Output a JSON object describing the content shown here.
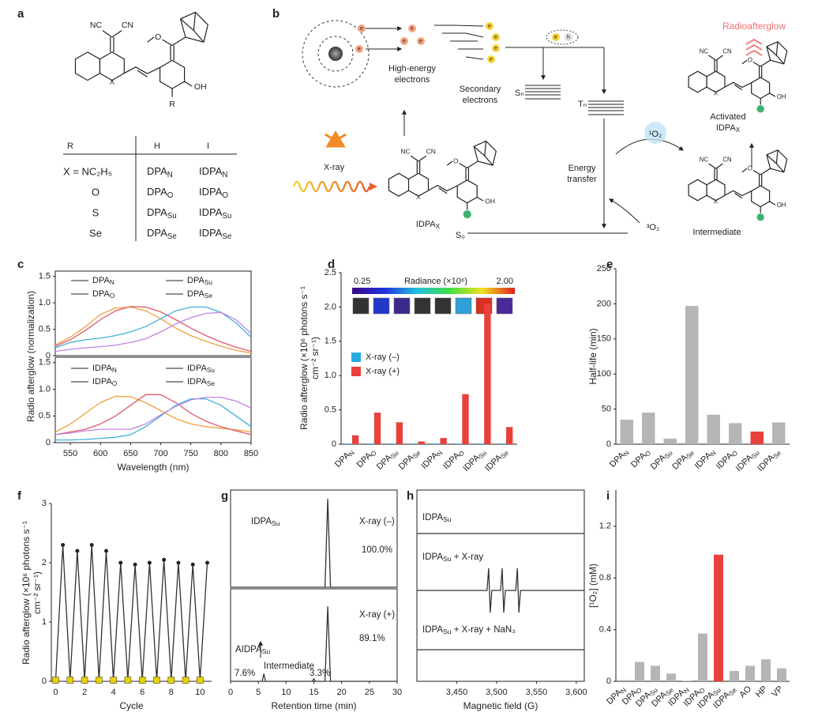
{
  "panel_labels": [
    "a",
    "b",
    "c",
    "d",
    "e",
    "f",
    "g",
    "h",
    "i"
  ],
  "structure": {
    "nc": "NC",
    "cn": "CN",
    "x": "X",
    "r": "R",
    "oh": "OH",
    "o": "O"
  },
  "table": {
    "header": [
      "R",
      "H",
      "I"
    ],
    "rows": [
      [
        "X = NC₂H₅",
        "DPAN",
        "IDPAN"
      ],
      [
        "O",
        "DPAO",
        "IDPAO"
      ],
      [
        "S",
        "DPASu",
        "IDPASu"
      ],
      [
        "Se",
        "DPASe",
        "IDPASe"
      ]
    ]
  },
  "mechanism": {
    "electron": "e",
    "hole": "h",
    "high_energy": [
      "High-energy",
      "electrons"
    ],
    "secondary": [
      "Secondary",
      "electrons"
    ],
    "sn": "Sₙ",
    "tn": "Tₙ",
    "s0": "S₀",
    "xray": "X-ray",
    "idpa": "IDPAX",
    "energy_transfer": [
      "Energy",
      "transfer"
    ],
    "singlet": "¹O₂",
    "triplet": "³O₂",
    "intermediate": "Intermediate",
    "activated": [
      "Activated",
      "IDPAX"
    ],
    "radioafterglow": "Radioafterglow"
  },
  "chart_data": [
    {
      "type": "line",
      "ylabel": "Radio afterglow (normalization)",
      "x": [
        525,
        550,
        575,
        600,
        625,
        650,
        675,
        700,
        725,
        750,
        775,
        800,
        825,
        850
      ],
      "xlim": [
        525,
        850
      ],
      "ylim": [
        0,
        1.6
      ],
      "yticks": [
        0,
        0.5,
        {
          "value": 1,
          "label": "1.0"
        },
        1.5
      ],
      "series": [
        {
          "name": "DPAN",
          "color": "#f0a040",
          "values": [
            0.2,
            0.35,
            0.55,
            0.78,
            0.9,
            0.92,
            0.85,
            0.7,
            0.52,
            0.38,
            0.27,
            0.18,
            0.1,
            0.05
          ]
        },
        {
          "name": "DPAO",
          "color": "#e05a6a",
          "values": [
            0.18,
            0.3,
            0.48,
            0.68,
            0.85,
            0.93,
            0.92,
            0.83,
            0.68,
            0.52,
            0.38,
            0.26,
            0.16,
            0.08
          ]
        },
        {
          "name": "DPASu",
          "color": "#3fb0e0",
          "values": [
            0.15,
            0.25,
            0.3,
            0.33,
            0.38,
            0.45,
            0.55,
            0.7,
            0.85,
            0.92,
            0.92,
            0.82,
            0.62,
            0.35
          ]
        },
        {
          "name": "DPASe",
          "color": "#c084e0",
          "values": [
            0.08,
            0.12,
            0.15,
            0.17,
            0.2,
            0.25,
            0.32,
            0.45,
            0.6,
            0.72,
            0.8,
            0.82,
            0.68,
            0.42
          ]
        }
      ]
    },
    {
      "type": "line",
      "xlabel": "Wavelength (nm)",
      "x": [
        525,
        550,
        575,
        600,
        625,
        650,
        675,
        700,
        725,
        750,
        775,
        800,
        825,
        850
      ],
      "xlim": [
        525,
        850
      ],
      "xticks": [
        550,
        600,
        650,
        700,
        750,
        800,
        850
      ],
      "ylim": [
        0,
        1.6
      ],
      "yticks": [
        0,
        0.5,
        {
          "value": 1,
          "label": "1.0"
        },
        1.5
      ],
      "series": [
        {
          "name": "IDPAN",
          "color": "#f0a040",
          "values": [
            0.2,
            0.35,
            0.55,
            0.75,
            0.87,
            0.86,
            0.75,
            0.6,
            0.45,
            0.35,
            0.3,
            0.27,
            0.24,
            0.2
          ]
        },
        {
          "name": "IDPAO",
          "color": "#e05a6a",
          "values": [
            0.15,
            0.2,
            0.25,
            0.35,
            0.5,
            0.7,
            0.9,
            0.9,
            0.75,
            0.55,
            0.4,
            0.3,
            0.22,
            0.15
          ]
        },
        {
          "name": "IDPASu",
          "color": "#3fb0e0",
          "values": [
            0.05,
            0.05,
            0.06,
            0.08,
            0.1,
            0.15,
            0.3,
            0.5,
            0.7,
            0.82,
            0.82,
            0.7,
            0.5,
            0.3
          ]
        },
        {
          "name": "IDPASe",
          "color": "#c084e0",
          "values": [
            0.15,
            0.18,
            0.22,
            0.25,
            0.25,
            0.25,
            0.35,
            0.52,
            0.68,
            0.8,
            0.85,
            0.85,
            0.78,
            0.65
          ]
        }
      ]
    },
    {
      "type": "bar",
      "ylabel": [
        "Radio afterglow (×10⁶ photons s⁻¹",
        "cm⁻² sr⁻¹)"
      ],
      "categories": [
        "DPAN",
        "DPAO",
        "DPASu",
        "DPASe",
        "IDPAN",
        "IDPAO",
        "IDPASu",
        "IDPASe"
      ],
      "series": [
        {
          "name": "X-ray (–)",
          "color": "#29abe2",
          "values": [
            0.01,
            0.01,
            0.01,
            0.01,
            0.01,
            0.01,
            0.01,
            0.01
          ]
        },
        {
          "name": "X-ray (+)",
          "color": "#e8413c",
          "values": [
            0.13,
            0.46,
            0.32,
            0.04,
            0.09,
            0.73,
            2.05,
            0.25
          ]
        }
      ],
      "ylim": [
        0,
        2.5
      ],
      "yticks": [
        0,
        0.5,
        {
          "value": 1,
          "label": "1.0"
        },
        1.5,
        {
          "value": 2,
          "label": "2.0"
        },
        2.5
      ],
      "colorbar": {
        "title": "Radiance (×10⁶)",
        "min_label": "0.25",
        "max_label": "2.00"
      }
    },
    {
      "type": "bar",
      "ylabel": "Half-life (min)",
      "categories": [
        "DPAN",
        "DPAO",
        "DPASu",
        "DPASe",
        "IDPAN",
        "IDPAO",
        "IDPASu",
        "IDPASe"
      ],
      "values": [
        35,
        45,
        8,
        197,
        42,
        30,
        18,
        31
      ],
      "colors": [
        "#b5b5b5",
        "#b5b5b5",
        "#b5b5b5",
        "#b5b5b5",
        "#b5b5b5",
        "#b5b5b5",
        "#e8413c",
        "#b5b5b5"
      ],
      "ylim": [
        0,
        250
      ],
      "yticks": [
        0,
        50,
        100,
        150,
        200,
        250
      ]
    },
    {
      "type": "line",
      "xlabel": "Cycle",
      "ylabel": [
        "Radio afterglow (×10⁶ photons s⁻¹",
        "cm⁻² sr⁻¹)"
      ],
      "x": [
        0,
        0.5,
        1,
        1.5,
        2,
        2.5,
        3,
        3.5,
        4,
        4.5,
        5,
        5.5,
        6,
        6.5,
        7,
        7.5,
        8,
        8.5,
        9,
        9.5,
        10,
        10.5
      ],
      "xlim": [
        -0.3,
        10.8
      ],
      "xticks": [
        0,
        2,
        4,
        6,
        8,
        10
      ],
      "ylim": [
        0,
        3
      ],
      "yticks": [
        0,
        1,
        2,
        3
      ],
      "series": [
        {
          "color": "#333333",
          "values": [
            0.02,
            2.3,
            0.02,
            2.2,
            0.02,
            2.3,
            0.02,
            2.2,
            0.02,
            2.0,
            0.02,
            1.97,
            0.02,
            2.0,
            0.02,
            2.05,
            0.02,
            2.0,
            0.02,
            1.97,
            0.02,
            2.0
          ],
          "point_colors": [
            "#e8d000",
            "#222222",
            "#e8d000",
            "#222222",
            "#e8d000",
            "#222222",
            "#e8d000",
            "#222222",
            "#e8d000",
            "#222222",
            "#e8d000",
            "#222222",
            "#e8d000",
            "#222222",
            "#e8d000",
            "#222222",
            "#e8d000",
            "#222222",
            "#e8d000",
            "#222222",
            "#e8d000",
            "#222222"
          ]
        }
      ]
    },
    {
      "type": "line",
      "xlim": [
        0,
        30
      ],
      "ylim": [
        0,
        1.1
      ],
      "series": [
        {
          "color": "#333333",
          "x": [
            0,
            17,
            17.5,
            18,
            30
          ],
          "values": [
            0,
            0,
            1,
            0,
            0
          ]
        }
      ],
      "annotations": [
        "IDPASu",
        "X-ray (–)",
        "100.0%"
      ]
    },
    {
      "type": "line",
      "xlabel": "Retention time (min)",
      "xlim": [
        0,
        30
      ],
      "xticks": [
        0,
        5,
        10,
        15,
        20,
        25,
        30
      ],
      "ylim": [
        0,
        1.1
      ],
      "series": [
        {
          "color": "#333333",
          "x": [
            0,
            5.7,
            6,
            6.3,
            14.7,
            15,
            15.3,
            17,
            17.5,
            18,
            30
          ],
          "values": [
            0,
            0,
            0.09,
            0,
            0,
            0.03,
            0,
            0,
            0.89,
            0,
            0
          ]
        }
      ],
      "annotations": [
        "X-ray (+)",
        "89.1%",
        "AIDPASu",
        "Intermediate",
        "7.6%",
        "3.3%"
      ]
    },
    {
      "type": "line",
      "xlabel": "Magnetic field (G)",
      "xlim": [
        3400,
        3610
      ],
      "xticks": [
        {
          "value": 3450,
          "label": "3,450"
        },
        {
          "value": 3500,
          "label": "3,500"
        },
        {
          "value": 3550,
          "label": "3,550"
        },
        {
          "value": 3600,
          "label": "3,600"
        }
      ],
      "ylim": [
        -1.2,
        1.2
      ],
      "series": [
        {
          "name": "IDPASu",
          "color": "#333333",
          "x": [
            3400,
            3610
          ],
          "values": [
            0,
            0
          ]
        },
        {
          "name": "IDPASu + X-ray",
          "color": "#333333",
          "x": [
            3400,
            3488,
            3490,
            3492,
            3494,
            3505,
            3507,
            3509,
            3511,
            3524,
            3526,
            3528,
            3530,
            3610
          ],
          "values": [
            0,
            0,
            1,
            -1,
            0,
            0,
            1,
            -1,
            0,
            0,
            1,
            -1,
            0,
            0
          ]
        },
        {
          "name": "IDPASu + X-ray + NaN₃",
          "color": "#333333",
          "x": [
            3400,
            3610
          ],
          "values": [
            0,
            0
          ]
        }
      ]
    },
    {
      "type": "bar",
      "ylabel": "[¹O₂] (mM)",
      "categories": [
        "DPAN",
        "DPAO",
        "DPASu",
        "DPASe",
        "IDPAN",
        "IDPAO",
        "IDPASu",
        "IDPASe",
        "AO",
        "HP",
        "VP"
      ],
      "values": [
        0.01,
        0.15,
        0.12,
        0.06,
        0.005,
        0.37,
        0.98,
        0.08,
        0.12,
        0.17,
        0.1
      ],
      "colors": [
        "#b5b5b5",
        "#b5b5b5",
        "#b5b5b5",
        "#b5b5b5",
        "#b5b5b5",
        "#b5b5b5",
        "#e8413c",
        "#b5b5b5",
        "#b5b5b5",
        "#b5b5b5",
        "#b5b5b5"
      ],
      "ylim": [
        0,
        1.48
      ],
      "yticks": [
        0,
        0.4,
        0.8,
        1.2
      ]
    }
  ]
}
